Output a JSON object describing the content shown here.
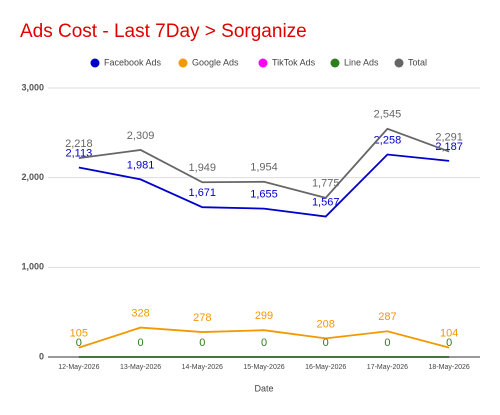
{
  "chart_data": {
    "type": "line",
    "title": "Ads Cost - Last 7Day > Sorganize",
    "x_label": "Date",
    "categories": [
      "12-May-2026",
      "13-May-2026",
      "14-May-2026",
      "15-May-2026",
      "16-May-2026",
      "17-May-2026",
      "18-May-2026"
    ],
    "series": [
      {
        "name": "Facebook Ads",
        "color": "#0000cc",
        "show_labels": true,
        "values": [
          2113,
          1981,
          1671,
          1655,
          1567,
          2258,
          2187
        ],
        "value_labels": [
          "2,113",
          "1,981",
          "1,671",
          "1,655",
          "1,567",
          "2,258",
          "2,187"
        ]
      },
      {
        "name": "Google Ads",
        "color": "#f29900",
        "show_labels": true,
        "values": [
          105,
          328,
          278,
          299,
          208,
          287,
          104
        ]
      },
      {
        "name": "TikTok Ads",
        "color": "#ff00ff",
        "show_labels": false,
        "values": [
          0,
          0,
          0,
          0,
          0,
          0,
          0
        ]
      },
      {
        "name": "Line Ads",
        "color": "#2e7d1e",
        "show_labels": true,
        "values": [
          0,
          0,
          0,
          0,
          0,
          0,
          0
        ]
      },
      {
        "name": "Total",
        "color": "#666666",
        "show_labels": true,
        "values": [
          2218,
          2309,
          1949,
          1954,
          1775,
          2545,
          2291
        ],
        "value_labels": [
          "2,218",
          "2,309",
          "1,949",
          "1,954",
          "1,775",
          "2,545",
          "2,291"
        ]
      }
    ],
    "ylim": [
      0,
      3000
    ],
    "yticks": [
      0,
      {
        "value": 1000,
        "label": "1,000"
      },
      {
        "value": 2000,
        "label": "2,000"
      },
      {
        "value": 3000,
        "label": "3,000"
      }
    ],
    "grid": true,
    "legend": "top"
  }
}
